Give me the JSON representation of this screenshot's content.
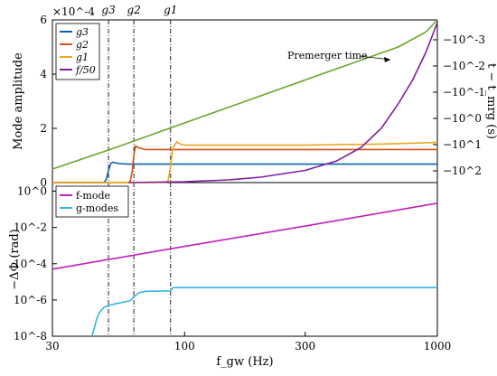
{
  "chart_data": [
    {
      "type": "line",
      "xlabel": "",
      "ylabel": "Mode amplitude",
      "ylabel_right": "t − t_mrg (s)",
      "xscale": "log",
      "xlim": [
        30,
        1000
      ],
      "ylim": [
        0,
        6
      ],
      "y_multiplier": "×10^-4",
      "yticks": [
        "0",
        "2",
        "4",
        "6"
      ],
      "right_yticks": [
        "−10^-3",
        "−10^-2",
        "−10^-1",
        "−10^0",
        "−10^1",
        "−10^2"
      ],
      "vlines": [
        {
          "label": "g3",
          "x": 50
        },
        {
          "label": "g2",
          "x": 63
        },
        {
          "label": "g1",
          "x": 88
        }
      ],
      "annotation": "Premerger time",
      "legend_position": "top-left",
      "series": [
        {
          "name": "g3",
          "color": "#0a62ad",
          "x": [
            30,
            48,
            49,
            50,
            51,
            52,
            55,
            60,
            100,
            200,
            500,
            1000
          ],
          "y": [
            0,
            0,
            0.12,
            0.45,
            0.7,
            0.75,
            0.7,
            0.68,
            0.68,
            0.68,
            0.68,
            0.68
          ]
        },
        {
          "name": "g2",
          "color": "#d4521a",
          "x": [
            30,
            60,
            61,
            62,
            63,
            64,
            66,
            70,
            90,
            150,
            300,
            600,
            1000
          ],
          "y": [
            0,
            0,
            0.05,
            0.4,
            1.0,
            1.35,
            1.28,
            1.22,
            1.22,
            1.22,
            1.22,
            1.22,
            1.22
          ]
        },
        {
          "name": "g1",
          "color": "#e8a91f",
          "x": [
            30,
            84,
            86,
            88,
            90,
            93,
            97,
            100,
            150,
            300,
            600,
            1000
          ],
          "y": [
            0,
            0,
            0.05,
            0.6,
            1.3,
            1.5,
            1.4,
            1.38,
            1.38,
            1.38,
            1.42,
            1.48
          ]
        },
        {
          "name": "f/50",
          "color": "#7d1f9c",
          "x": [
            60,
            100,
            150,
            200,
            300,
            400,
            500,
            600,
            700,
            800,
            900,
            1000
          ],
          "y": [
            0,
            0.03,
            0.1,
            0.2,
            0.45,
            0.8,
            1.3,
            2.0,
            2.9,
            3.8,
            4.8,
            5.9
          ]
        },
        {
          "name": "Premerger time",
          "color": "#6aa42a",
          "x": [
            30,
            50,
            100,
            200,
            400,
            700,
            900,
            1000
          ],
          "y": [
            0.5,
            1.2,
            2.2,
            3.2,
            4.2,
            5.0,
            5.55,
            6.0
          ]
        }
      ]
    },
    {
      "type": "line",
      "xlabel": "f_gw (Hz)",
      "ylabel": "−ΔΦ (rad)",
      "xscale": "log",
      "yscale": "log",
      "xlim": [
        30,
        1000
      ],
      "ylim": [
        1e-08,
        3
      ],
      "xticks": [
        "30",
        "100",
        "300",
        "1000"
      ],
      "yticks": [
        "10^-8",
        "10^-6",
        "10^-4",
        "10^-2",
        "10^0"
      ],
      "legend_position": "top-left",
      "series": [
        {
          "name": "f-mode",
          "color": "#c020b8",
          "x": [
            30,
            100,
            300,
            1000
          ],
          "y": [
            5e-05,
            0.0009,
            0.012,
            0.22
          ]
        },
        {
          "name": "g-modes",
          "color": "#38b4e0",
          "x": [
            43,
            44,
            45,
            46,
            48,
            50,
            53,
            57,
            61,
            63,
            66,
            70,
            88,
            90,
            100,
            300,
            1000
          ],
          "y": [
            1e-08,
            3e-08,
            1e-07,
            2e-07,
            4e-07,
            5e-07,
            6e-07,
            7.5e-07,
            9e-07,
            1.5e-06,
            2.5e-06,
            3e-06,
            3.2e-06,
            4.8e-06,
            4.8e-06,
            4.8e-06,
            4.8e-06
          ]
        }
      ]
    }
  ]
}
